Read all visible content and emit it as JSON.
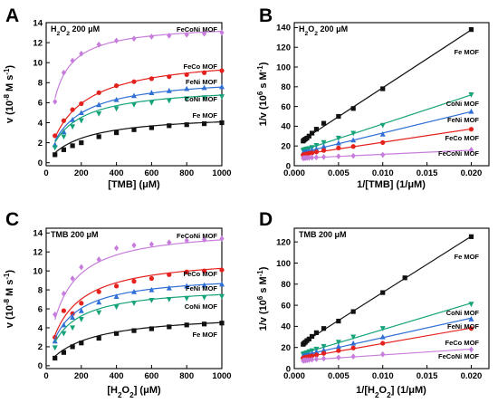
{
  "colors": {
    "FeCoNi MOF": "#c77ddb",
    "FeCo MOF": "#e5211d",
    "FeNi MOF": "#2f6fd6",
    "CoNi MOF": "#16a37a",
    "Fe MOF": "#111111"
  },
  "chart_data": [
    {
      "id": "A",
      "panel_label": "A",
      "type": "scatter",
      "condition": "H2O2 200 μM",
      "xlabel": "[TMB] (μM)",
      "ylabel": "v (10⁻⁸ M s⁻¹)",
      "xlim": [
        0,
        1000
      ],
      "ylim": [
        -0.3,
        14
      ],
      "xticks": [
        0,
        200,
        400,
        600,
        800,
        1000
      ],
      "yticks": [
        0,
        2,
        4,
        6,
        8,
        10,
        12,
        14
      ],
      "fit": "michaelis",
      "label_order": [
        "FeCoNi MOF",
        "FeCo MOF",
        "FeNi MOF",
        "CoNi MOF",
        "Fe MOF"
      ],
      "series": [
        {
          "name": "FeCoNi MOF",
          "marker": "diamond",
          "vmax": 13.9,
          "km": 58,
          "x": [
            50,
            100,
            150,
            200,
            300,
            400,
            500,
            600,
            700,
            800,
            900,
            1000
          ],
          "y": [
            6.1,
            9.0,
            10.2,
            10.9,
            11.8,
            12.2,
            12.4,
            12.6,
            12.7,
            12.8,
            12.9,
            13.0
          ]
        },
        {
          "name": "FeCo MOF",
          "marker": "circle",
          "vmax": 10.8,
          "km": 165,
          "x": [
            50,
            100,
            150,
            200,
            300,
            400,
            500,
            600,
            700,
            800,
            900,
            1000
          ],
          "y": [
            2.7,
            4.2,
            5.3,
            5.9,
            7.0,
            7.7,
            8.1,
            8.4,
            8.6,
            8.8,
            9.0,
            9.2
          ]
        },
        {
          "name": "FeNi MOF",
          "marker": "triangle",
          "vmax": 8.7,
          "km": 150,
          "x": [
            50,
            100,
            150,
            200,
            300,
            400,
            500,
            600,
            700,
            800,
            900,
            1000
          ],
          "y": [
            1.8,
            3.1,
            4.3,
            5.0,
            5.8,
            6.3,
            6.7,
            7.0,
            7.2,
            7.4,
            7.5,
            7.6
          ]
        },
        {
          "name": "CoNi MOF",
          "marker": "triangle-down",
          "vmax": 7.7,
          "km": 140,
          "x": [
            50,
            100,
            150,
            200,
            300,
            400,
            500,
            600,
            700,
            800,
            900,
            1000
          ],
          "y": [
            1.5,
            2.6,
            3.6,
            4.2,
            4.9,
            5.4,
            5.8,
            6.0,
            6.2,
            6.4,
            6.5,
            6.6
          ]
        },
        {
          "name": "Fe MOF",
          "marker": "square",
          "vmax": 4.9,
          "km": 200,
          "x": [
            50,
            100,
            150,
            200,
            300,
            400,
            500,
            600,
            700,
            800,
            900,
            1000
          ],
          "y": [
            0.8,
            1.3,
            1.7,
            2.0,
            2.6,
            3.0,
            3.3,
            3.5,
            3.7,
            3.8,
            3.9,
            4.0
          ]
        }
      ]
    },
    {
      "id": "B",
      "panel_label": "B",
      "type": "scatter",
      "condition": "H2O2 200 μM",
      "xlabel": "1/[TMB] (1/μM)",
      "ylabel": "1/v (10⁶ s M⁻¹)",
      "xlim": [
        0,
        0.022
      ],
      "ylim": [
        0,
        145
      ],
      "xticks": [
        0.0,
        0.005,
        0.01,
        0.015,
        0.02
      ],
      "yticks": [
        0,
        20,
        40,
        60,
        80,
        100,
        120,
        140
      ],
      "fit": "linear",
      "label_order": [
        "Fe MOF",
        "CoNi MOF",
        "FeNi MOF",
        "FeCo MOF",
        "FeCoNi MOF"
      ],
      "series": [
        {
          "name": "Fe MOF",
          "marker": "square",
          "x": [
            0.001,
            0.00111,
            0.00125,
            0.00143,
            0.00167,
            0.002,
            0.0025,
            0.00333,
            0.005,
            0.00667,
            0.01,
            0.02
          ],
          "y": [
            25.0,
            26.0,
            27.0,
            28.0,
            30.0,
            33.0,
            37.0,
            43.0,
            50.0,
            58.0,
            78.0,
            138.0
          ]
        },
        {
          "name": "CoNi MOF",
          "marker": "triangle-down",
          "x": [
            0.001,
            0.00111,
            0.00125,
            0.00143,
            0.00167,
            0.002,
            0.0025,
            0.00333,
            0.005,
            0.00667,
            0.01,
            0.02
          ],
          "y": [
            15.5,
            16.0,
            16.5,
            17.0,
            17.5,
            18.5,
            20.5,
            23.5,
            28.0,
            33.0,
            41.0,
            72.0
          ]
        },
        {
          "name": "FeNi MOF",
          "marker": "triangle",
          "x": [
            0.001,
            0.00111,
            0.00125,
            0.00143,
            0.00167,
            0.002,
            0.0025,
            0.00333,
            0.005,
            0.00667,
            0.01,
            0.02
          ],
          "y": [
            13.0,
            13.5,
            14.0,
            14.3,
            15.0,
            16.0,
            17.0,
            19.5,
            23.0,
            26.0,
            32.0,
            55.0
          ]
        },
        {
          "name": "FeCo MOF",
          "marker": "circle",
          "x": [
            0.001,
            0.00111,
            0.00125,
            0.00143,
            0.00167,
            0.002,
            0.0025,
            0.00333,
            0.005,
            0.00667,
            0.01,
            0.02
          ],
          "y": [
            11.0,
            11.3,
            11.6,
            12.0,
            12.5,
            13.0,
            14.0,
            15.5,
            18.0,
            19.5,
            23.5,
            37.0
          ]
        },
        {
          "name": "FeCoNi MOF",
          "marker": "diamond",
          "x": [
            0.001,
            0.00111,
            0.00125,
            0.00143,
            0.00167,
            0.002,
            0.0025,
            0.00333,
            0.005,
            0.00667,
            0.01,
            0.02
          ],
          "y": [
            7.7,
            7.8,
            7.9,
            8.0,
            8.1,
            8.3,
            8.5,
            8.8,
            9.5,
            10.0,
            11.0,
            16.0
          ]
        }
      ]
    },
    {
      "id": "C",
      "panel_label": "C",
      "type": "scatter",
      "condition": "TMB 200 μM",
      "xlabel": "[H2O2] (μM)",
      "ylabel": "v (10⁻⁸ M s⁻¹)",
      "xlim": [
        0,
        1000
      ],
      "ylim": [
        -0.3,
        14.5
      ],
      "xticks": [
        0,
        200,
        400,
        600,
        800,
        1000
      ],
      "yticks": [
        0,
        2,
        4,
        6,
        8,
        10,
        12,
        14
      ],
      "fit": "michaelis",
      "label_order": [
        "FeCoNi MOF",
        "FeCo MOF",
        "FeNi MOF",
        "CoNi MOF",
        "Fe MOF"
      ],
      "series": [
        {
          "name": "FeCoNi MOF",
          "marker": "diamond",
          "vmax": 14.6,
          "km": 100,
          "x": [
            50,
            100,
            150,
            200,
            300,
            400,
            500,
            600,
            700,
            800,
            900,
            1000
          ],
          "y": [
            5.4,
            7.6,
            9.2,
            10.4,
            11.2,
            12.4,
            12.7,
            12.8,
            13.0,
            13.2,
            13.3,
            13.4
          ]
        },
        {
          "name": "FeCo MOF",
          "marker": "circle",
          "vmax": 11.6,
          "km": 130,
          "x": [
            50,
            100,
            150,
            200,
            300,
            400,
            500,
            600,
            700,
            800,
            900,
            1000
          ],
          "y": [
            3.0,
            5.8,
            5.5,
            6.6,
            7.8,
            8.4,
            8.9,
            9.2,
            9.6,
            9.9,
            10.0,
            10.1
          ]
        },
        {
          "name": "FeNi MOF",
          "marker": "triangle",
          "vmax": 9.7,
          "km": 120,
          "x": [
            50,
            100,
            150,
            200,
            300,
            400,
            500,
            600,
            700,
            800,
            900,
            1000
          ],
          "y": [
            2.6,
            4.3,
            5.1,
            5.8,
            6.7,
            7.3,
            7.8,
            8.0,
            8.2,
            8.4,
            8.5,
            8.6
          ]
        },
        {
          "name": "CoNi MOF",
          "marker": "triangle-down",
          "vmax": 8.4,
          "km": 120,
          "x": [
            50,
            100,
            150,
            200,
            300,
            400,
            500,
            600,
            700,
            800,
            900,
            1000
          ],
          "y": [
            1.9,
            3.4,
            4.0,
            4.9,
            5.6,
            6.2,
            6.6,
            6.9,
            7.0,
            7.1,
            7.2,
            7.3
          ]
        },
        {
          "name": "Fe MOF",
          "marker": "square",
          "vmax": 5.6,
          "km": 230,
          "x": [
            50,
            100,
            150,
            200,
            300,
            400,
            500,
            600,
            700,
            800,
            900,
            1000
          ],
          "y": [
            0.8,
            1.4,
            2.0,
            2.4,
            2.9,
            3.4,
            3.7,
            3.9,
            4.1,
            4.3,
            4.4,
            4.5
          ]
        }
      ]
    },
    {
      "id": "D",
      "panel_label": "D",
      "type": "scatter",
      "condition": "TMB 200 μM",
      "xlabel": "1/[H2O2] (1/μM)",
      "ylabel": "1/v (10⁶ s M⁻¹)",
      "xlim": [
        0,
        0.022
      ],
      "ylim": [
        0,
        133
      ],
      "xticks": [
        0.0,
        0.005,
        0.01,
        0.015,
        0.02
      ],
      "yticks": [
        0,
        20,
        40,
        60,
        80,
        100,
        120
      ],
      "fit": "linear",
      "label_order": [
        "Fe MOF",
        "CoNi MOF",
        "FeNi MOF",
        "FeCo MOF",
        "FeCoNi MOF"
      ],
      "series": [
        {
          "name": "Fe MOF",
          "marker": "square",
          "x": [
            0.001,
            0.00111,
            0.00125,
            0.00143,
            0.00167,
            0.002,
            0.0025,
            0.00333,
            0.005,
            0.00667,
            0.01,
            0.0125,
            0.02
          ],
          "y": [
            23.0,
            24.0,
            25.0,
            26.5,
            28.0,
            30.5,
            34.0,
            38.0,
            45.0,
            54.0,
            72.0,
            86.0,
            125.0
          ]
        },
        {
          "name": "CoNi MOF",
          "marker": "triangle-down",
          "x": [
            0.001,
            0.00111,
            0.00125,
            0.00143,
            0.00167,
            0.002,
            0.0025,
            0.00333,
            0.005,
            0.00667,
            0.01,
            0.02
          ],
          "y": [
            13.5,
            14.0,
            14.5,
            15.0,
            16.0,
            17.0,
            18.5,
            21.0,
            25.0,
            30.0,
            38.0,
            61.0
          ]
        },
        {
          "name": "FeNi MOF",
          "marker": "triangle",
          "x": [
            0.001,
            0.00111,
            0.00125,
            0.00143,
            0.00167,
            0.002,
            0.0025,
            0.00333,
            0.005,
            0.00667,
            0.01,
            0.02
          ],
          "y": [
            12.0,
            12.3,
            12.6,
            13.0,
            13.5,
            14.5,
            16.0,
            17.5,
            21.0,
            24.0,
            30.0,
            47.0
          ]
        },
        {
          "name": "FeCo MOF",
          "marker": "circle",
          "x": [
            0.001,
            0.00111,
            0.00125,
            0.00143,
            0.00167,
            0.002,
            0.0025,
            0.00333,
            0.005,
            0.00667,
            0.01,
            0.02
          ],
          "y": [
            10.0,
            10.3,
            10.6,
            11.0,
            11.4,
            12.0,
            13.0,
            14.5,
            17.0,
            19.5,
            24.0,
            38.0
          ]
        },
        {
          "name": "FeCoNi MOF",
          "marker": "diamond",
          "x": [
            0.001,
            0.00111,
            0.00125,
            0.00143,
            0.00167,
            0.002,
            0.0025,
            0.00333,
            0.005,
            0.00667,
            0.01,
            0.02
          ],
          "y": [
            7.5,
            7.7,
            7.9,
            8.0,
            8.2,
            8.5,
            9.0,
            9.5,
            10.5,
            11.5,
            13.5,
            18.0
          ]
        }
      ]
    }
  ]
}
